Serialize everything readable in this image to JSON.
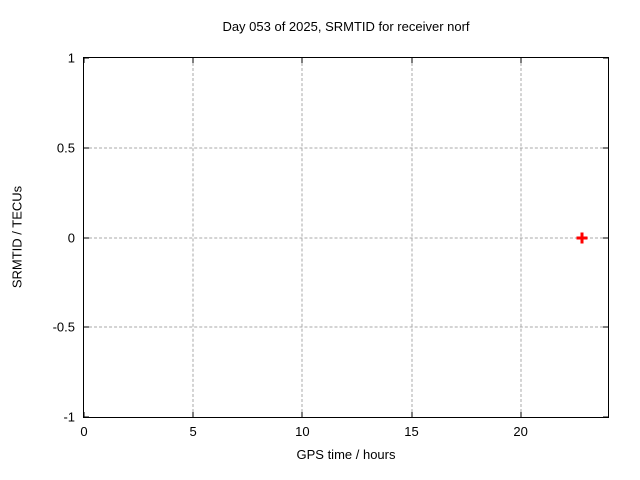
{
  "window": {
    "background": "#ffffff"
  },
  "chart_data": {
    "type": "scatter",
    "title": "Day 053 of 2025, SRMTID for receiver norf",
    "xlabel": "GPS time / hours",
    "ylabel": "SRMTID / TECUs",
    "xlim": [
      0,
      24
    ],
    "ylim": [
      -1,
      1
    ],
    "xticks": [
      0,
      5,
      10,
      15,
      20
    ],
    "yticks": [
      1,
      0.5,
      0,
      -0.5,
      -1
    ],
    "grid": true,
    "grid_color": "#a8a8a8",
    "axis_color": "#000000",
    "legend": "none",
    "series": [
      {
        "name": "SRMTID",
        "marker": "plus",
        "color": "#ff0000",
        "points": [
          [
            22.8,
            0.0
          ]
        ]
      }
    ]
  }
}
